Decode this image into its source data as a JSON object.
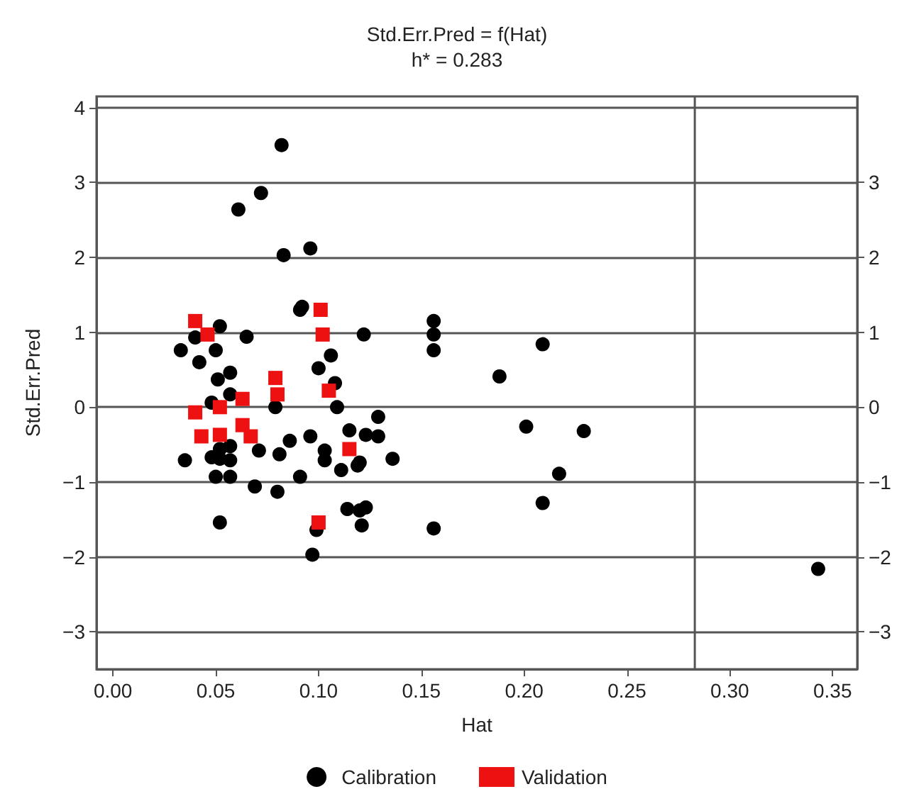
{
  "chart_data": {
    "type": "scatter",
    "title": "Std.Err.Pred = f(Hat)",
    "subtitle": "h* = 0.283",
    "xlabel": "Hat",
    "ylabel": "Std.Err.Pred",
    "xlim": [
      -0.008,
      0.362
    ],
    "xticks": [
      {
        "value": 0,
        "label": "0.00"
      },
      {
        "value": 0.05,
        "label": "0.05"
      },
      {
        "value": 0.1,
        "label": "0.10"
      },
      {
        "value": 0.15,
        "label": "0.15"
      },
      {
        "value": 0.2,
        "label": "0.20"
      },
      {
        "value": 0.25,
        "label": "0.25"
      },
      {
        "value": 0.3,
        "label": "0.30"
      },
      {
        "value": 0.35,
        "label": "0.35"
      }
    ],
    "ylim": [
      -3.5,
      4.15
    ],
    "yticks": [
      {
        "value": -3,
        "label": "−3"
      },
      {
        "value": -2,
        "label": "−2"
      },
      {
        "value": -1,
        "label": "−1"
      },
      0,
      1,
      2,
      3,
      4
    ],
    "y2lim": [
      -3.5,
      4.15
    ],
    "y2ticks": [
      {
        "value": -3,
        "label": "−3"
      },
      {
        "value": -2,
        "label": "−2"
      },
      {
        "value": -1,
        "label": "−1"
      },
      0,
      1,
      2,
      3
    ],
    "grid": "y",
    "legend": "bottom",
    "ref_lines": [
      {
        "axis": "x",
        "value": 0.283,
        "color": "#555555"
      }
    ],
    "series": [
      {
        "name": "Calibration",
        "color": "#000000",
        "marker": "circle",
        "x": [
          0.082,
          0.072,
          0.061,
          0.083,
          0.096,
          0.091,
          0.092,
          0.052,
          0.065,
          0.04,
          0.033,
          0.05,
          0.122,
          0.106,
          0.042,
          0.057,
          0.051,
          0.1,
          0.108,
          0.057,
          0.048,
          0.079,
          0.109,
          0.035,
          0.048,
          0.052,
          0.057,
          0.057,
          0.052,
          0.071,
          0.081,
          0.086,
          0.096,
          0.103,
          0.103,
          0.111,
          0.115,
          0.12,
          0.05,
          0.057,
          0.091,
          0.069,
          0.08,
          0.114,
          0.12,
          0.121,
          0.052,
          0.099,
          0.097,
          0.156,
          0.156,
          0.156,
          0.209,
          0.188,
          0.129,
          0.123,
          0.129,
          0.136,
          0.119,
          0.201,
          0.229,
          0.217,
          0.123,
          0.156,
          0.209,
          0.343
        ],
        "values": [
          3.5,
          2.86,
          2.64,
          2.03,
          2.12,
          1.3,
          1.34,
          1.08,
          0.94,
          0.93,
          0.76,
          0.76,
          0.97,
          0.69,
          0.6,
          0.46,
          0.37,
          0.52,
          0.32,
          0.17,
          0.06,
          0,
          0,
          -0.71,
          -0.67,
          -0.69,
          -0.52,
          -0.71,
          -0.56,
          -0.58,
          -0.63,
          -0.45,
          -0.39,
          -0.58,
          -0.71,
          -0.84,
          -0.31,
          -0.74,
          -0.93,
          -0.93,
          -0.93,
          -1.06,
          -1.13,
          -1.36,
          -1.38,
          -1.58,
          -1.54,
          -1.64,
          -1.97,
          1.15,
          0.97,
          0.76,
          0.84,
          0.41,
          -0.13,
          -0.37,
          -0.39,
          -0.69,
          -0.78,
          -0.26,
          -0.32,
          -0.89,
          -1.34,
          -1.62,
          -1.28,
          -2.16
        ]
      },
      {
        "name": "Validation",
        "color": "#ee1111",
        "marker": "square",
        "x": [
          0.04,
          0.046,
          0.101,
          0.102,
          0.079,
          0.08,
          0.105,
          0.063,
          0.052,
          0.04,
          0.043,
          0.052,
          0.063,
          0.067,
          0.115,
          0.1
        ],
        "values": [
          1.15,
          0.97,
          1.3,
          0.97,
          0.39,
          0.17,
          0.22,
          0.11,
          0,
          -0.07,
          -0.39,
          -0.37,
          -0.24,
          -0.39,
          -0.56,
          -1.54
        ]
      }
    ]
  }
}
